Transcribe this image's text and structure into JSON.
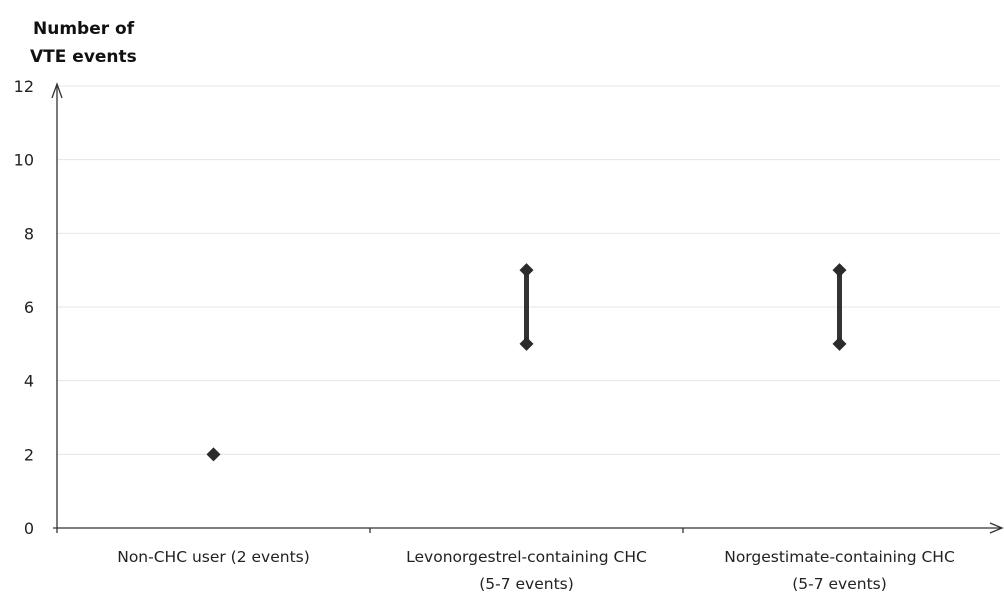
{
  "chart_data": {
    "type": "scatter",
    "ylabel_lines": [
      "Number of",
      "VTE events"
    ],
    "xlabel": "",
    "ylim": [
      0,
      12
    ],
    "yticks": [
      0,
      2,
      4,
      6,
      8,
      10,
      12
    ],
    "grid": "horizontal",
    "categories": [
      {
        "label_lines": [
          "Non-CHC user (2 events)"
        ],
        "min": 2,
        "max": 2
      },
      {
        "label_lines": [
          "Levonorgestrel-containing CHC",
          "(5-7 events)"
        ],
        "min": 5,
        "max": 7
      },
      {
        "label_lines": [
          "Norgestimate-containing CHC",
          "(5-7 events)"
        ],
        "min": 5,
        "max": 7
      }
    ],
    "colors": {
      "marker": "#2b2b2b",
      "grid": "#e4e4e4",
      "axis": "#333333"
    }
  }
}
